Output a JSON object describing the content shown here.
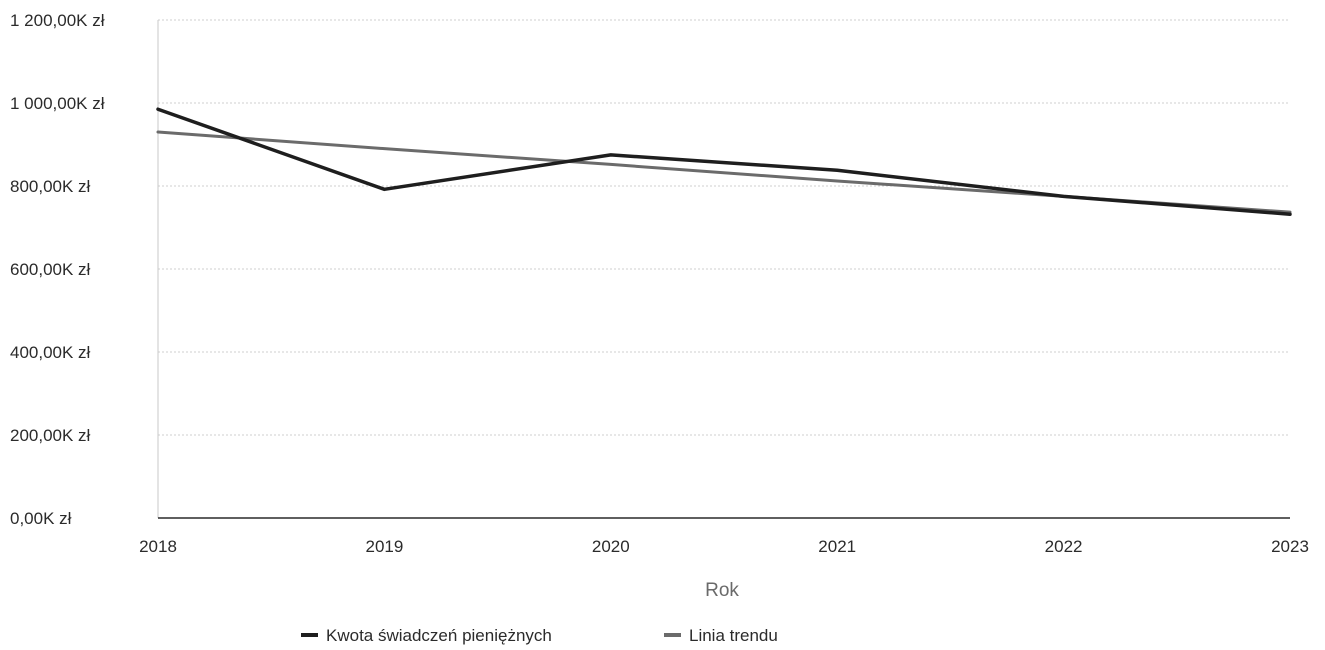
{
  "chart_data": {
    "type": "line",
    "title": "",
    "xlabel": "Rok",
    "ylabel": "",
    "categories": [
      "2018",
      "2019",
      "2020",
      "2021",
      "2022",
      "2023"
    ],
    "y_ticks": [
      {
        "value": 0,
        "label": "0,00K zł"
      },
      {
        "value": 200,
        "label": "200,00K zł"
      },
      {
        "value": 400,
        "label": "400,00K zł"
      },
      {
        "value": 600,
        "label": "600,00K zł"
      },
      {
        "value": 800,
        "label": "800,00K zł"
      },
      {
        "value": 1000,
        "label": "1 000,00K zł"
      },
      {
        "value": 1200,
        "label": "1 200,00K zł"
      }
    ],
    "ylim": [
      0,
      1200
    ],
    "y_unit": "K zł",
    "grid": true,
    "legend_position": "bottom",
    "series": [
      {
        "name": "Kwota świadczeń pieniężnych",
        "color": "#1e1e1e",
        "values": [
          985,
          792,
          875,
          838,
          775,
          732
        ]
      },
      {
        "name": "Linia trendu",
        "color": "#6b6b6b",
        "values": [
          930,
          890,
          852,
          812,
          775,
          737
        ]
      }
    ]
  }
}
